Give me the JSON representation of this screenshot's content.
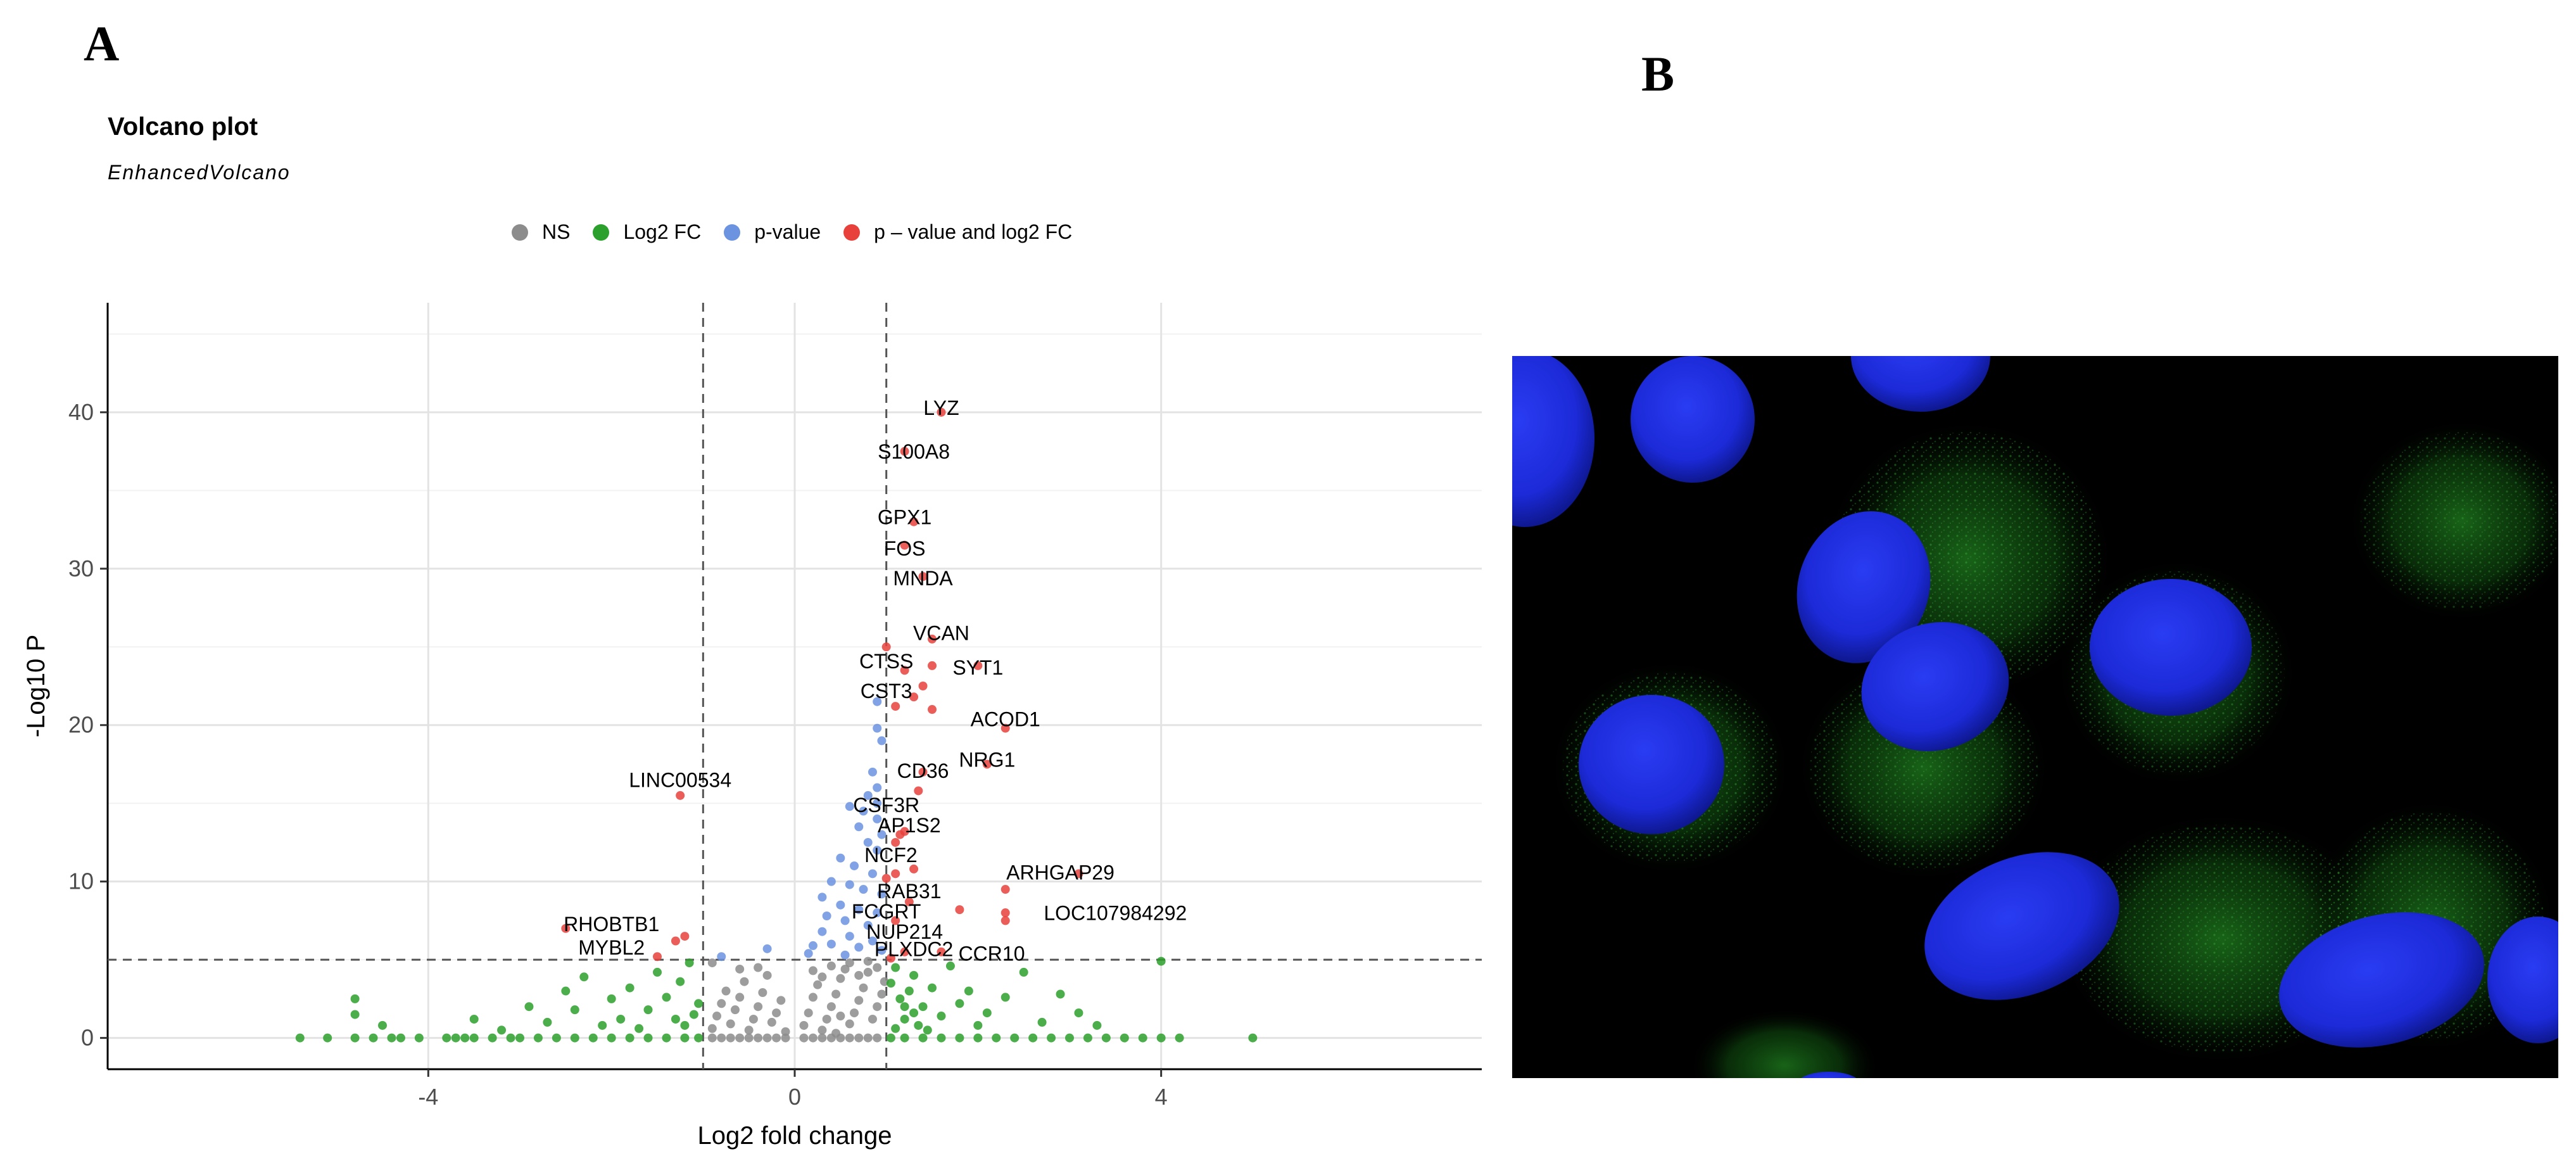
{
  "panels": {
    "a": "A",
    "b": "B"
  },
  "chart_data": {
    "type": "scatter",
    "title": "Volcano plot",
    "subtitle": "EnhancedVolcano",
    "xlabel": "Log2 fold change",
    "ylabel": "-Log10 P",
    "xlim": [
      -7.5,
      7.5
    ],
    "ylim": [
      -2,
      47
    ],
    "xticks": [
      -4,
      0,
      4
    ],
    "yticks": [
      0,
      10,
      20,
      30,
      40
    ],
    "grid": true,
    "legend_position": "top",
    "fc_cutoffs": [
      -1,
      1
    ],
    "p_cutoff": 5,
    "legend": [
      {
        "key": "ns",
        "label": "NS",
        "color": "#8c8c8c"
      },
      {
        "key": "fc",
        "label": "Log2 FC",
        "color": "#2ca02c"
      },
      {
        "key": "p",
        "label": "p-value",
        "color": "#6b93e0"
      },
      {
        "key": "both",
        "label": "p – value and log2 FC",
        "color": "#e8413c"
      }
    ],
    "series": [
      {
        "key": "both",
        "points": [
          [
            1.6,
            40
          ],
          [
            1.2,
            37.5
          ],
          [
            1.3,
            33
          ],
          [
            1.2,
            31.5
          ],
          [
            1.4,
            29.5
          ],
          [
            1.5,
            25.5
          ],
          [
            1.0,
            25
          ],
          [
            1.5,
            23.8
          ],
          [
            2.0,
            23.8
          ],
          [
            1.2,
            23.5
          ],
          [
            1.4,
            22.5
          ],
          [
            1.3,
            21.8
          ],
          [
            1.1,
            21.2
          ],
          [
            1.5,
            21
          ],
          [
            2.3,
            19.8
          ],
          [
            2.1,
            17.5
          ],
          [
            1.4,
            17
          ],
          [
            1.35,
            15.8
          ],
          [
            -1.25,
            15.5
          ],
          [
            1.15,
            13
          ],
          [
            1.2,
            13.2
          ],
          [
            1.1,
            12.5
          ],
          [
            1.3,
            10.8
          ],
          [
            1.1,
            10.5
          ],
          [
            1.0,
            10.2
          ],
          [
            3.1,
            10.5
          ],
          [
            2.3,
            9.5
          ],
          [
            1.25,
            8.7
          ],
          [
            2.3,
            8
          ],
          [
            1.8,
            8.2
          ],
          [
            2.3,
            7.5
          ],
          [
            1.1,
            7.5
          ],
          [
            -2.5,
            7
          ],
          [
            -1.2,
            6.5
          ],
          [
            -1.3,
            6.2
          ],
          [
            1.2,
            5.5
          ],
          [
            1.6,
            5.5
          ],
          [
            -1.5,
            5.2
          ],
          [
            1.05,
            5.1
          ]
        ]
      },
      {
        "key": "p",
        "points": [
          [
            0.9,
            21.5
          ],
          [
            0.9,
            19.8
          ],
          [
            0.95,
            19
          ],
          [
            0.85,
            17
          ],
          [
            0.9,
            16
          ],
          [
            0.8,
            15.5
          ],
          [
            0.9,
            15
          ],
          [
            0.6,
            14.8
          ],
          [
            0.75,
            14.5
          ],
          [
            0.9,
            14
          ],
          [
            0.7,
            13.5
          ],
          [
            0.95,
            13
          ],
          [
            0.8,
            12.5
          ],
          [
            0.9,
            12
          ],
          [
            0.5,
            11.5
          ],
          [
            0.65,
            11
          ],
          [
            0.85,
            10.5
          ],
          [
            0.4,
            10
          ],
          [
            0.6,
            9.8
          ],
          [
            0.75,
            9.5
          ],
          [
            0.95,
            9.2
          ],
          [
            0.3,
            9
          ],
          [
            0.5,
            8.5
          ],
          [
            0.7,
            8.2
          ],
          [
            0.9,
            8
          ],
          [
            0.35,
            7.8
          ],
          [
            0.55,
            7.5
          ],
          [
            0.8,
            7.2
          ],
          [
            0.3,
            6.8
          ],
          [
            0.6,
            6.5
          ],
          [
            0.85,
            6.2
          ],
          [
            0.4,
            6
          ],
          [
            0.7,
            5.8
          ],
          [
            0.95,
            5.6
          ],
          [
            0.15,
            5.4
          ],
          [
            0.55,
            5.3
          ],
          [
            -0.3,
            5.7
          ],
          [
            -0.8,
            5.2
          ],
          [
            0.2,
            5.9
          ]
        ]
      },
      {
        "key": "fc",
        "points": [
          [
            -5.4,
            0
          ],
          [
            -5.1,
            0
          ],
          [
            -4.8,
            0
          ],
          [
            -4.6,
            0
          ],
          [
            -4.4,
            0
          ],
          [
            -4.3,
            0
          ],
          [
            -4.1,
            0
          ],
          [
            -3.8,
            0
          ],
          [
            -3.7,
            0
          ],
          [
            -3.6,
            0
          ],
          [
            -3.5,
            0
          ],
          [
            -3.3,
            0
          ],
          [
            -3.1,
            0
          ],
          [
            -3.0,
            0
          ],
          [
            -2.8,
            0
          ],
          [
            -2.6,
            0
          ],
          [
            -2.4,
            0
          ],
          [
            -2.2,
            0
          ],
          [
            -2.0,
            0
          ],
          [
            -1.8,
            0
          ],
          [
            -1.6,
            0
          ],
          [
            -1.4,
            0
          ],
          [
            -1.2,
            0
          ],
          [
            -1.05,
            0
          ],
          [
            1.05,
            0
          ],
          [
            1.2,
            0
          ],
          [
            1.4,
            0
          ],
          [
            1.6,
            0
          ],
          [
            1.8,
            0
          ],
          [
            2.0,
            0
          ],
          [
            2.2,
            0
          ],
          [
            2.4,
            0
          ],
          [
            2.6,
            0
          ],
          [
            2.8,
            0
          ],
          [
            3.0,
            0
          ],
          [
            3.2,
            0
          ],
          [
            3.4,
            0
          ],
          [
            3.6,
            0
          ],
          [
            3.8,
            0
          ],
          [
            4.0,
            0
          ],
          [
            4.2,
            0
          ],
          [
            5.0,
            0
          ],
          [
            -4.8,
            2.5
          ],
          [
            -4.8,
            1.5
          ],
          [
            -4.5,
            0.8
          ],
          [
            -3.5,
            1.2
          ],
          [
            -3.2,
            0.5
          ],
          [
            -2.9,
            2.0
          ],
          [
            -2.7,
            1.0
          ],
          [
            -2.5,
            3.0
          ],
          [
            -2.4,
            1.8
          ],
          [
            -2.3,
            3.9
          ],
          [
            -2.1,
            0.8
          ],
          [
            -2.0,
            2.5
          ],
          [
            -1.9,
            1.2
          ],
          [
            -1.8,
            3.2
          ],
          [
            -1.7,
            0.6
          ],
          [
            -1.6,
            1.8
          ],
          [
            -1.5,
            4.2
          ],
          [
            -1.4,
            2.6
          ],
          [
            -1.3,
            1.2
          ],
          [
            -1.25,
            3.6
          ],
          [
            -1.2,
            0.8
          ],
          [
            -1.15,
            4.8
          ],
          [
            -1.1,
            1.5
          ],
          [
            -1.05,
            2.2
          ],
          [
            1.05,
            3.5
          ],
          [
            1.1,
            4.5
          ],
          [
            1.15,
            2.5
          ],
          [
            1.2,
            1.2
          ],
          [
            1.25,
            3.0
          ],
          [
            1.3,
            4.0
          ],
          [
            1.35,
            0.8
          ],
          [
            1.4,
            2.0
          ],
          [
            1.5,
            3.2
          ],
          [
            1.6,
            1.4
          ],
          [
            1.7,
            4.6
          ],
          [
            1.8,
            2.2
          ],
          [
            1.9,
            3.0
          ],
          [
            2.0,
            0.8
          ],
          [
            2.1,
            1.6
          ],
          [
            2.3,
            2.6
          ],
          [
            2.5,
            4.2
          ],
          [
            2.7,
            1.0
          ],
          [
            2.9,
            2.8
          ],
          [
            3.1,
            1.6
          ],
          [
            3.3,
            0.8
          ],
          [
            4.0,
            4.9
          ],
          [
            1.1,
            0.6
          ],
          [
            1.2,
            2.0
          ],
          [
            1.3,
            1.6
          ],
          [
            1.45,
            0.5
          ]
        ]
      },
      {
        "key": "ns",
        "points": [
          [
            -0.9,
            0
          ],
          [
            -0.8,
            0
          ],
          [
            -0.7,
            0
          ],
          [
            -0.6,
            0
          ],
          [
            -0.5,
            0
          ],
          [
            -0.4,
            0
          ],
          [
            -0.3,
            0
          ],
          [
            -0.2,
            0
          ],
          [
            -0.1,
            0
          ],
          [
            0.1,
            0
          ],
          [
            0.2,
            0
          ],
          [
            0.3,
            0
          ],
          [
            0.4,
            0
          ],
          [
            0.5,
            0
          ],
          [
            0.6,
            0
          ],
          [
            0.7,
            0
          ],
          [
            0.8,
            0
          ],
          [
            0.9,
            0
          ],
          [
            -0.9,
            0.6
          ],
          [
            -0.85,
            1.4
          ],
          [
            -0.8,
            2.2
          ],
          [
            -0.75,
            3.0
          ],
          [
            -0.7,
            0.9
          ],
          [
            -0.65,
            1.8
          ],
          [
            -0.6,
            2.6
          ],
          [
            -0.55,
            3.6
          ],
          [
            -0.5,
            0.5
          ],
          [
            -0.45,
            1.2
          ],
          [
            -0.4,
            2.0
          ],
          [
            -0.35,
            2.9
          ],
          [
            -0.3,
            4.0
          ],
          [
            -0.25,
            1.0
          ],
          [
            -0.2,
            1.6
          ],
          [
            -0.15,
            2.4
          ],
          [
            -0.1,
            0.4
          ],
          [
            -0.6,
            4.4
          ],
          [
            -0.9,
            4.8
          ],
          [
            -0.4,
            4.5
          ],
          [
            0.1,
            0.8
          ],
          [
            0.15,
            1.6
          ],
          [
            0.2,
            2.6
          ],
          [
            0.25,
            3.4
          ],
          [
            0.3,
            0.5
          ],
          [
            0.35,
            1.2
          ],
          [
            0.4,
            2.0
          ],
          [
            0.45,
            2.8
          ],
          [
            0.5,
            3.8
          ],
          [
            0.55,
            4.4
          ],
          [
            0.6,
            0.9
          ],
          [
            0.65,
            1.6
          ],
          [
            0.7,
            2.4
          ],
          [
            0.75,
            3.2
          ],
          [
            0.8,
            4.2
          ],
          [
            0.85,
            1.2
          ],
          [
            0.9,
            2.0
          ],
          [
            0.95,
            2.8
          ],
          [
            0.98,
            3.6
          ],
          [
            0.6,
            4.8
          ],
          [
            0.8,
            4.9
          ],
          [
            0.4,
            4.6
          ],
          [
            0.3,
            3.9
          ],
          [
            0.7,
            4.0
          ],
          [
            0.5,
            1.4
          ],
          [
            0.2,
            4.3
          ],
          [
            0.9,
            4.5
          ],
          [
            0.45,
            0.3
          ]
        ]
      }
    ],
    "labels": [
      {
        "gene": "LYZ",
        "x": 1.6,
        "y": 40
      },
      {
        "gene": "S100A8",
        "x": 1.3,
        "y": 37.2
      },
      {
        "gene": "GPX1",
        "x": 1.2,
        "y": 33
      },
      {
        "gene": "FOS",
        "x": 1.2,
        "y": 31
      },
      {
        "gene": "MNDA",
        "x": 1.4,
        "y": 29.1
      },
      {
        "gene": "VCAN",
        "x": 1.6,
        "y": 25.6
      },
      {
        "gene": "CTSS",
        "x": 1.0,
        "y": 23.8
      },
      {
        "gene": "SYT1",
        "x": 2.0,
        "y": 23.4
      },
      {
        "gene": "CST3",
        "x": 1.0,
        "y": 21.9
      },
      {
        "gene": "ACOD1",
        "x": 2.3,
        "y": 20.1
      },
      {
        "gene": "NRG1",
        "x": 2.1,
        "y": 17.5
      },
      {
        "gene": "CD36",
        "x": 1.4,
        "y": 16.8
      },
      {
        "gene": "LINC00534",
        "x": -1.25,
        "y": 16.2
      },
      {
        "gene": "CSF3R",
        "x": 1.0,
        "y": 14.6
      },
      {
        "gene": "AP1S2",
        "x": 1.25,
        "y": 13.3
      },
      {
        "gene": "NCF2",
        "x": 1.05,
        "y": 11.4
      },
      {
        "gene": "ARHGAP29",
        "x": 2.9,
        "y": 10.3
      },
      {
        "gene": "RAB31",
        "x": 1.25,
        "y": 9.1
      },
      {
        "gene": "FCGRT",
        "x": 1.0,
        "y": 7.8
      },
      {
        "gene": "LOC107984292",
        "x": 3.5,
        "y": 7.7
      },
      {
        "gene": "RHOBTB1",
        "x": -2.0,
        "y": 7.0
      },
      {
        "gene": "NUP214",
        "x": 1.2,
        "y": 6.5
      },
      {
        "gene": "MYBL2",
        "x": -2.0,
        "y": 5.5
      },
      {
        "gene": "PLXDC2",
        "x": 1.3,
        "y": 5.4
      },
      {
        "gene": "CCR10",
        "x": 2.15,
        "y": 5.1
      }
    ]
  }
}
